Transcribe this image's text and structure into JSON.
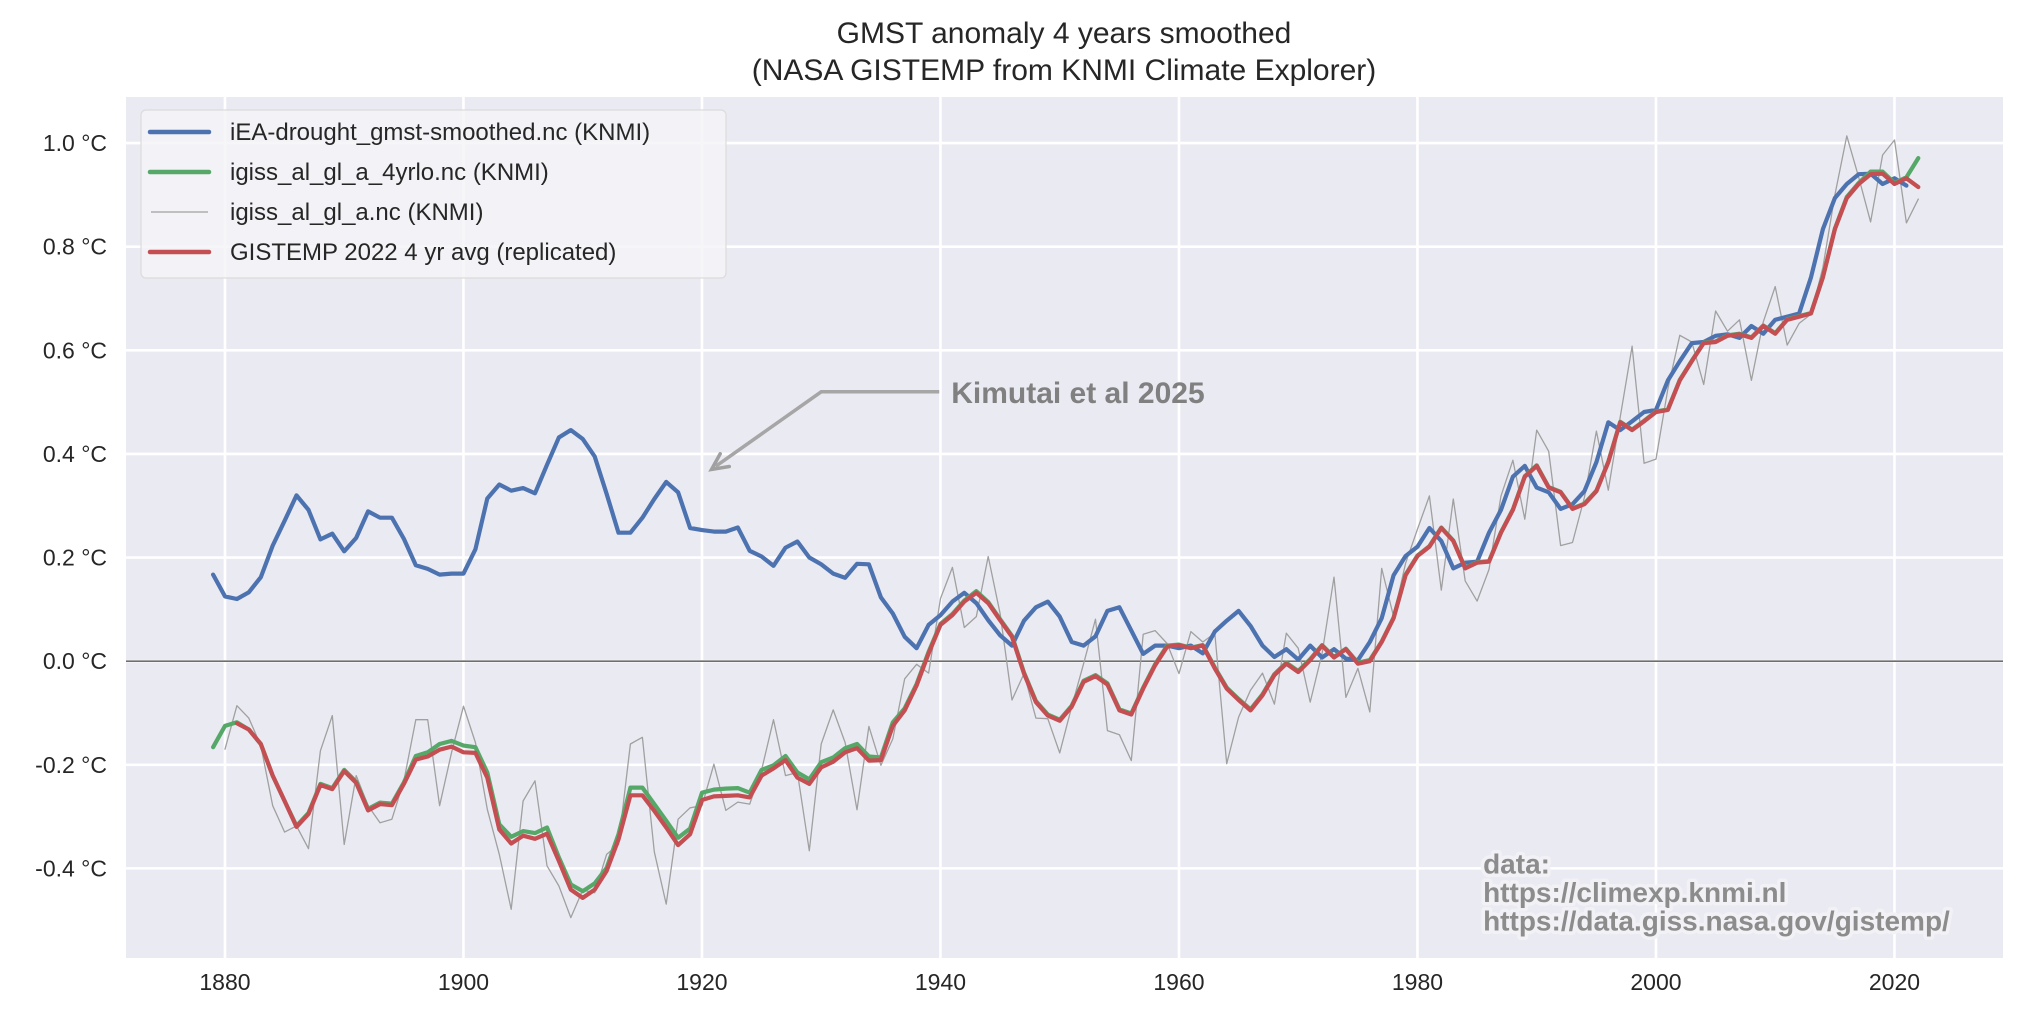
{
  "chart_data": {
    "type": "line",
    "title": "GMST anomaly 4 years smoothed",
    "subtitle": "(NASA GISTEMP from KNMI Climate Explorer)",
    "xlabel": "",
    "ylabel": "",
    "xlim": [
      1871.7,
      2029.1
    ],
    "ylim": [
      -0.573,
      1.089
    ],
    "grid": true,
    "legend_position": "top-left",
    "x_ticks": [
      1880,
      1900,
      1920,
      1940,
      1960,
      1980,
      2000,
      2020
    ],
    "x_tick_labels": [
      "1880",
      "1900",
      "1920",
      "1940",
      "1960",
      "1980",
      "2000",
      "2020"
    ],
    "y_ticks": [
      -0.4,
      -0.2,
      0.0,
      0.2,
      0.4,
      0.6,
      0.8,
      1.0
    ],
    "y_tick_labels": [
      "-0.4 °C",
      "-0.2 °C",
      "0.0 °C",
      "0.2 °C",
      "0.4 °C",
      "0.6 °C",
      "0.8 °C",
      "1.0 °C"
    ],
    "reference_line": {
      "y": 0.0,
      "color": "#6e6e6e"
    },
    "colors": {
      "background": "#eaeaf2",
      "grid": "#ffffff"
    },
    "series": [
      {
        "name": "iEA-drought_gmst-smoothed.nc (KNMI)",
        "color": "#4c72b0",
        "style": "thick",
        "x_start": 1879,
        "values": [
          0.167,
          0.125,
          0.12,
          0.133,
          0.162,
          0.223,
          0.271,
          0.32,
          0.292,
          0.235,
          0.246,
          0.212,
          0.238,
          0.289,
          0.277,
          0.277,
          0.236,
          0.185,
          0.178,
          0.167,
          0.169,
          0.169,
          0.216,
          0.314,
          0.341,
          0.329,
          0.334,
          0.324,
          0.379,
          0.432,
          0.446,
          0.429,
          0.395,
          0.323,
          0.248,
          0.248,
          0.277,
          0.313,
          0.346,
          0.326,
          0.257,
          0.253,
          0.25,
          0.25,
          0.258,
          0.213,
          0.202,
          0.184,
          0.219,
          0.231,
          0.2,
          0.187,
          0.169,
          0.161,
          0.188,
          0.187,
          0.123,
          0.092,
          0.047,
          0.025,
          0.07,
          0.089,
          0.115,
          0.132,
          0.112,
          0.079,
          0.05,
          0.03,
          0.078,
          0.104,
          0.115,
          0.086,
          0.037,
          0.03,
          0.048,
          0.097,
          0.104,
          0.059,
          0.014,
          0.03,
          0.03,
          0.025,
          0.03,
          0.015,
          0.057,
          0.078,
          0.097,
          0.068,
          0.03,
          0.008,
          0.023,
          0.003,
          0.03,
          0.007,
          0.023,
          0.005,
          0.002,
          0.037,
          0.083,
          0.166,
          0.203,
          0.221,
          0.257,
          0.232,
          0.179,
          0.19,
          0.192,
          0.248,
          0.292,
          0.356,
          0.377,
          0.335,
          0.326,
          0.294,
          0.303,
          0.328,
          0.384,
          0.461,
          0.446,
          0.463,
          0.481,
          0.485,
          0.542,
          0.579,
          0.614,
          0.616,
          0.628,
          0.631,
          0.624,
          0.647,
          0.632,
          0.659,
          0.665,
          0.671,
          0.741,
          0.834,
          0.894,
          0.921,
          0.94,
          0.941,
          0.921,
          0.932,
          0.918
        ]
      },
      {
        "name": "igiss_al_gl_a_4yrlo.nc (KNMI)",
        "color": "#55a868",
        "style": "thick",
        "x_start": 1879,
        "values": [
          -0.166,
          -0.125,
          -0.118,
          -0.132,
          -0.16,
          -0.221,
          -0.27,
          -0.318,
          -0.293,
          -0.237,
          -0.245,
          -0.21,
          -0.233,
          -0.285,
          -0.273,
          -0.275,
          -0.234,
          -0.183,
          -0.176,
          -0.16,
          -0.154,
          -0.163,
          -0.166,
          -0.215,
          -0.315,
          -0.339,
          -0.328,
          -0.332,
          -0.321,
          -0.379,
          -0.431,
          -0.444,
          -0.429,
          -0.399,
          -0.334,
          -0.244,
          -0.244,
          -0.276,
          -0.308,
          -0.341,
          -0.323,
          -0.254,
          -0.248,
          -0.246,
          -0.245,
          -0.254,
          -0.21,
          -0.201,
          -0.183,
          -0.215,
          -0.228,
          -0.195,
          -0.186,
          -0.168,
          -0.16,
          -0.184,
          -0.186,
          -0.118,
          -0.091,
          -0.044,
          0.018,
          0.072,
          0.091,
          0.117,
          0.135,
          0.114,
          0.081,
          0.049,
          -0.022,
          -0.077,
          -0.103,
          -0.113,
          -0.086,
          -0.038,
          -0.027,
          -0.043,
          -0.093,
          -0.101,
          -0.051,
          -0.006,
          0.03,
          0.032,
          0.026,
          0.031,
          -0.012,
          -0.051,
          -0.073,
          -0.093,
          -0.064,
          -0.025,
          -0.003,
          -0.019,
          0.004,
          0.031,
          0.008,
          0.024,
          -0.003,
          0.002,
          0.038,
          0.084,
          0.167,
          0.204,
          0.222,
          0.258,
          0.233,
          0.18,
          0.191,
          0.193,
          0.249,
          0.293,
          0.357,
          0.378,
          0.336,
          0.327,
          0.295,
          0.304,
          0.329,
          0.385,
          0.462,
          0.447,
          0.464,
          0.482,
          0.486,
          0.543,
          0.58,
          0.615,
          0.617,
          0.629,
          0.632,
          0.625,
          0.648,
          0.633,
          0.66,
          0.666,
          0.672,
          0.742,
          0.835,
          0.896,
          0.923,
          0.945,
          0.945,
          0.923,
          0.934,
          0.971
        ]
      },
      {
        "name": "igiss_al_gl_a.nc (KNMI)",
        "color": "#a0a0a0",
        "style": "thin",
        "x_start": 1880,
        "values": [
          -0.17,
          -0.086,
          -0.11,
          -0.163,
          -0.279,
          -0.33,
          -0.318,
          -0.362,
          -0.173,
          -0.105,
          -0.354,
          -0.221,
          -0.279,
          -0.312,
          -0.305,
          -0.231,
          -0.113,
          -0.113,
          -0.279,
          -0.176,
          -0.087,
          -0.157,
          -0.286,
          -0.373,
          -0.479,
          -0.27,
          -0.231,
          -0.395,
          -0.434,
          -0.495,
          -0.442,
          -0.447,
          -0.373,
          -0.354,
          -0.16,
          -0.147,
          -0.368,
          -0.469,
          -0.305,
          -0.283,
          -0.279,
          -0.199,
          -0.288,
          -0.272,
          -0.276,
          -0.21,
          -0.113,
          -0.221,
          -0.215,
          -0.366,
          -0.16,
          -0.094,
          -0.157,
          -0.287,
          -0.126,
          -0.201,
          -0.15,
          -0.034,
          -0.006,
          -0.023,
          0.121,
          0.181,
          0.065,
          0.086,
          0.202,
          0.092,
          -0.075,
          -0.024,
          -0.11,
          -0.111,
          -0.177,
          -0.088,
          -0.005,
          0.081,
          -0.134,
          -0.142,
          -0.192,
          0.052,
          0.059,
          0.034,
          -0.024,
          0.057,
          0.037,
          0.054,
          -0.198,
          -0.108,
          -0.056,
          -0.023,
          -0.083,
          0.054,
          0.025,
          -0.079,
          0.015,
          0.162,
          -0.07,
          -0.014,
          -0.098,
          0.179,
          0.086,
          0.189,
          0.255,
          0.319,
          0.137,
          0.313,
          0.155,
          0.116,
          0.177,
          0.319,
          0.388,
          0.274,
          0.446,
          0.405,
          0.223,
          0.229,
          0.316,
          0.444,
          0.33,
          0.471,
          0.608,
          0.382,
          0.39,
          0.526,
          0.629,
          0.616,
          0.534,
          0.676,
          0.637,
          0.659,
          0.542,
          0.655,
          0.723,
          0.61,
          0.652,
          0.67,
          0.76,
          0.9,
          1.014,
          0.934,
          0.848,
          0.977,
          1.006,
          0.846,
          0.892
        ]
      },
      {
        "name": "GISTEMP 2022 4 yr avg (replicated)",
        "color": "#c44e52",
        "style": "thick",
        "x_start": 1881,
        "values": [
          -0.12,
          -0.132,
          -0.16,
          -0.221,
          -0.27,
          -0.32,
          -0.295,
          -0.239,
          -0.247,
          -0.212,
          -0.235,
          -0.288,
          -0.276,
          -0.278,
          -0.237,
          -0.19,
          -0.184,
          -0.171,
          -0.165,
          -0.176,
          -0.177,
          -0.225,
          -0.325,
          -0.352,
          -0.337,
          -0.343,
          -0.333,
          -0.386,
          -0.441,
          -0.457,
          -0.441,
          -0.405,
          -0.344,
          -0.259,
          -0.259,
          -0.289,
          -0.321,
          -0.355,
          -0.334,
          -0.268,
          -0.261,
          -0.26,
          -0.259,
          -0.263,
          -0.221,
          -0.207,
          -0.191,
          -0.225,
          -0.237,
          -0.205,
          -0.194,
          -0.176,
          -0.168,
          -0.192,
          -0.191,
          -0.125,
          -0.095,
          -0.047,
          0.015,
          0.07,
          0.089,
          0.115,
          0.132,
          0.112,
          0.079,
          0.047,
          -0.024,
          -0.079,
          -0.105,
          -0.115,
          -0.088,
          -0.04,
          -0.029,
          -0.045,
          -0.095,
          -0.103,
          -0.053,
          -0.008,
          0.028,
          0.031,
          0.025,
          0.03,
          -0.014,
          -0.053,
          -0.075,
          -0.095,
          -0.066,
          -0.027,
          -0.005,
          -0.021,
          0.002,
          0.03,
          0.007,
          0.023,
          -0.005,
          0.0,
          0.037,
          0.083,
          0.166,
          0.203,
          0.221,
          0.257,
          0.232,
          0.179,
          0.19,
          0.192,
          0.248,
          0.292,
          0.356,
          0.377,
          0.335,
          0.326,
          0.294,
          0.303,
          0.328,
          0.384,
          0.461,
          0.446,
          0.463,
          0.481,
          0.485,
          0.542,
          0.579,
          0.614,
          0.616,
          0.628,
          0.631,
          0.624,
          0.647,
          0.632,
          0.659,
          0.665,
          0.671,
          0.741,
          0.834,
          0.894,
          0.921,
          0.94,
          0.941,
          0.921,
          0.932,
          0.915
        ]
      }
    ],
    "annotations": [
      {
        "text": "Kimutai et al 2025",
        "arrow_target": [
          1920.8,
          0.37
        ],
        "arrow_knee": [
          1930.0,
          0.52
        ],
        "text_anchor": [
          1940.9,
          0.52
        ],
        "color": "#808080"
      }
    ],
    "source_note": {
      "lines": [
        "data:",
        "https://climexp.knmi.nl",
        "https://data.giss.nasa.gov/gistemp/"
      ],
      "anchor": [
        1985.5,
        -0.41
      ],
      "color": "#8c8c8c"
    }
  }
}
